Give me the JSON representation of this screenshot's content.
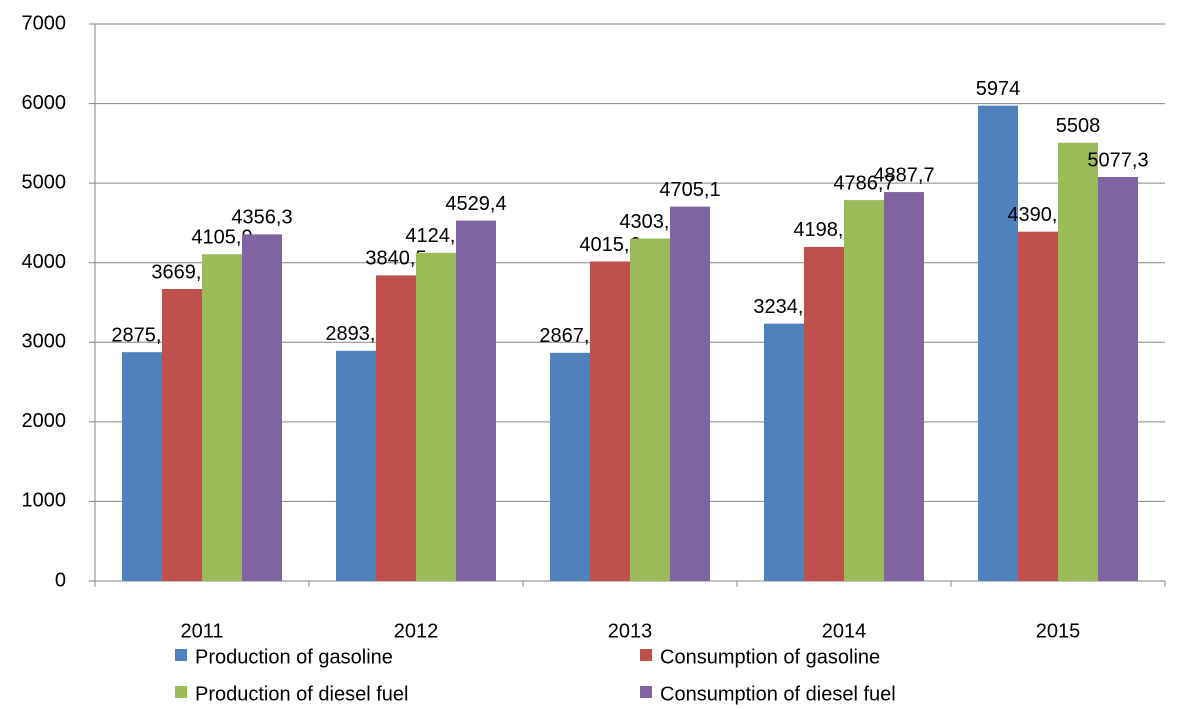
{
  "chart_data": {
    "type": "bar",
    "categories": [
      "2011",
      "2012",
      "2013",
      "2014",
      "2015"
    ],
    "series": [
      {
        "name": "Production of gasoline",
        "color": "#4f81bd",
        "values": [
          2875.6,
          2893.3,
          2867.9,
          3234.2,
          5974
        ],
        "value_labels": [
          "2875,6",
          "2893,3",
          "2867,9",
          "3234,2",
          "5974"
        ]
      },
      {
        "name": "Consumption of gasoline",
        "color": "#c0504d",
        "values": [
          3669.7,
          3840.5,
          4015.6,
          4198.7,
          4390.2
        ],
        "value_labels": [
          "3669,7",
          "3840,5",
          "4015,6",
          "4198,7",
          "4390,2"
        ]
      },
      {
        "name": "Production of diesel fuel",
        "color": "#9bbb59",
        "values": [
          4105.9,
          4124.6,
          4303.5,
          4786.7,
          5508
        ],
        "value_labels": [
          "4105,9",
          "4124,6",
          "4303,5",
          "4786,7",
          "5508"
        ]
      },
      {
        "name": "Consumption of diesel fuel",
        "color": "#8064a2",
        "values": [
          4356.3,
          4529.4,
          4705.1,
          4887.7,
          5077.3
        ],
        "value_labels": [
          "4356,3",
          "4529,4",
          "4705,1",
          "4887,7",
          "5077,3"
        ]
      }
    ],
    "ylim": [
      0,
      7000
    ],
    "yticks": [
      0,
      1000,
      2000,
      3000,
      4000,
      5000,
      6000,
      7000
    ],
    "grid": true,
    "legend": "bottom"
  }
}
